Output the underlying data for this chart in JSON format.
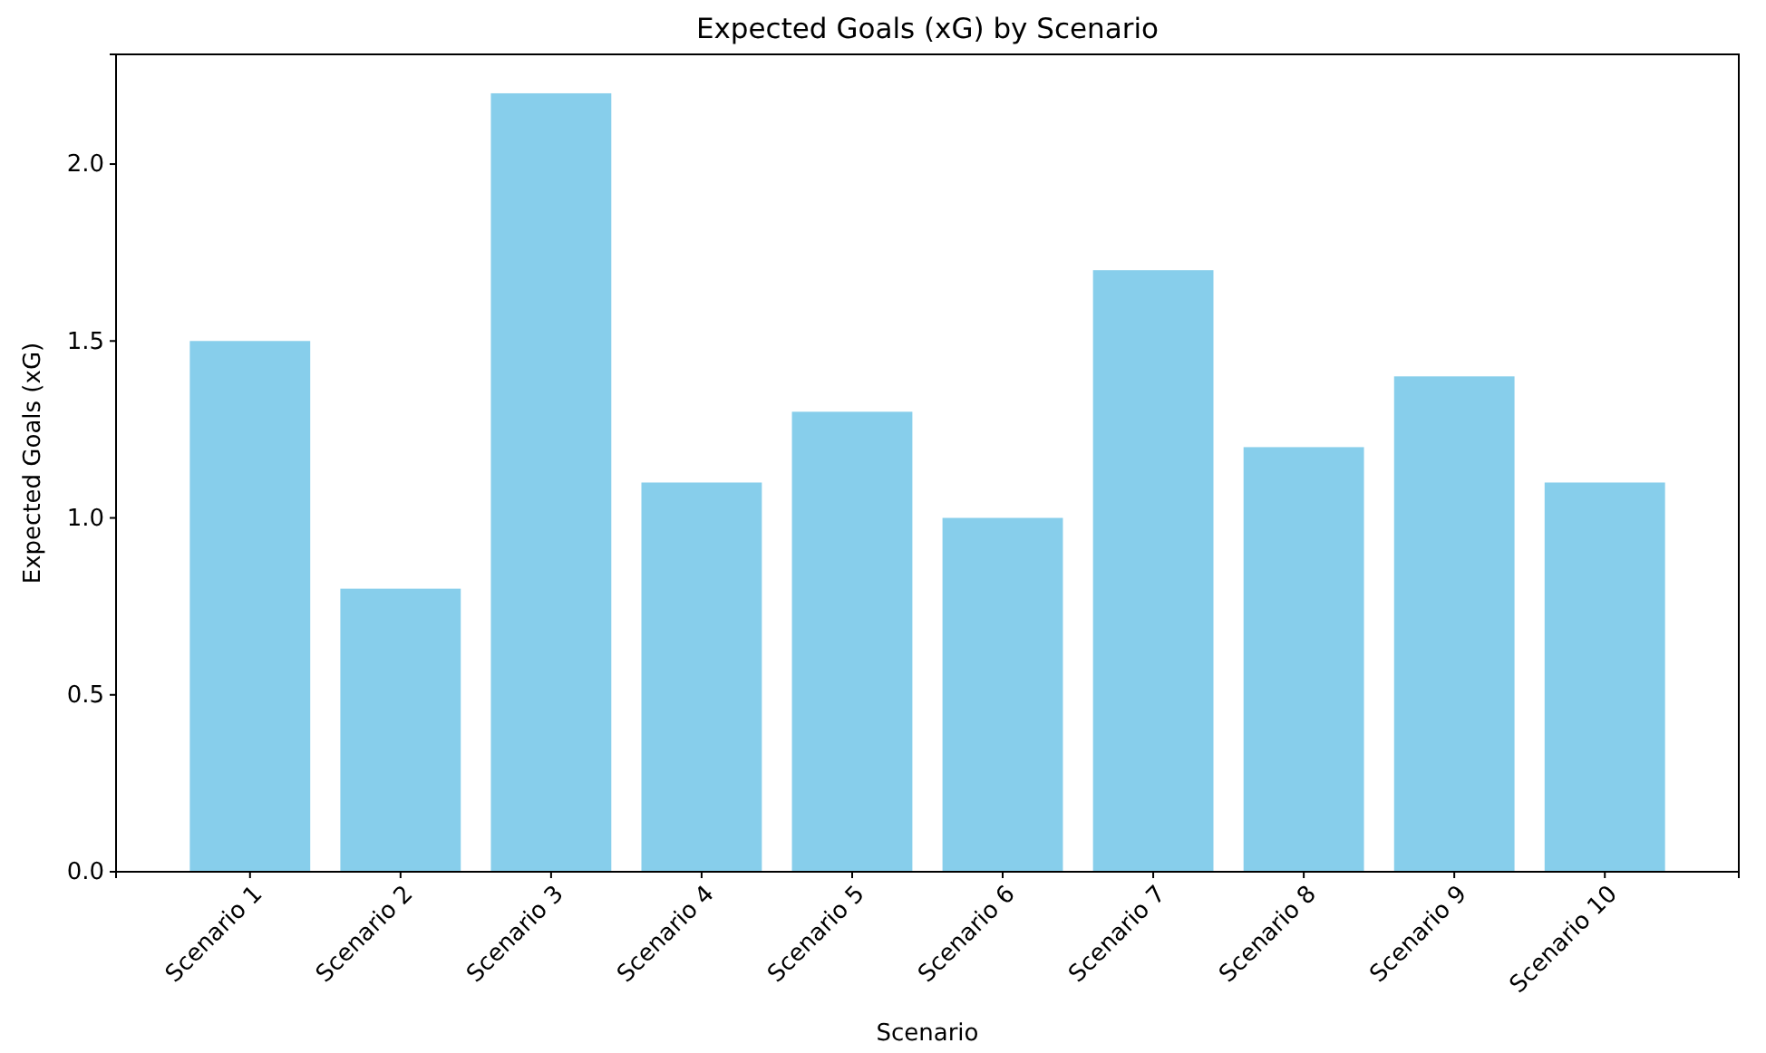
{
  "chart_data": {
    "type": "bar",
    "title": "Expected Goals (xG) by Scenario",
    "xlabel": "Scenario",
    "ylabel": "Expected Goals (xG)",
    "categories": [
      "Scenario 1",
      "Scenario 2",
      "Scenario 3",
      "Scenario 4",
      "Scenario 5",
      "Scenario 6",
      "Scenario 7",
      "Scenario 8",
      "Scenario 9",
      "Scenario 10"
    ],
    "values": [
      1.5,
      0.8,
      2.2,
      1.1,
      1.3,
      1.0,
      1.7,
      1.2,
      1.4,
      1.1
    ],
    "color": "#87ceeb",
    "ylim": [
      0,
      2.31
    ],
    "yticks": [
      {
        "value": 0,
        "label": "0.0"
      },
      {
        "value": 0.5,
        "label": "0.5"
      },
      {
        "value": 1,
        "label": "1.0"
      },
      {
        "value": 1.5,
        "label": "1.5"
      },
      {
        "value": 2,
        "label": "2.0"
      }
    ],
    "grid": false
  }
}
